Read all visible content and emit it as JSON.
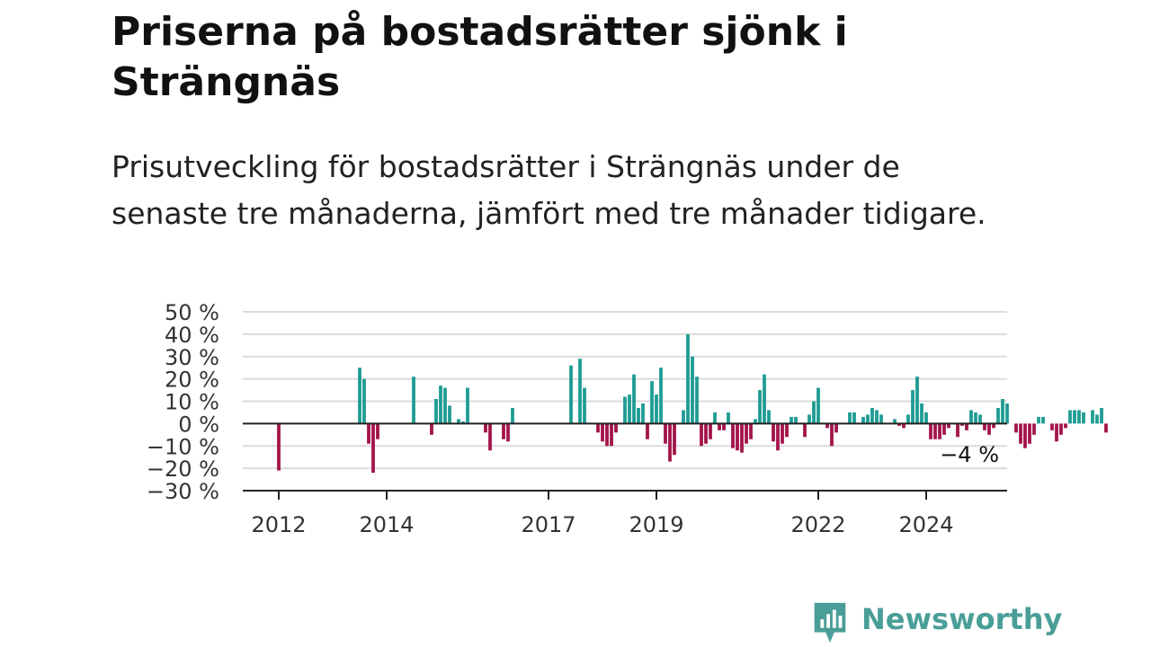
{
  "title": "Priserna på bostadsrätter sjönk i Strängnäs",
  "subtitle": "Prisutveckling för bostadsrätter i Strängnäs under de senaste tre månaderna, jämfört med tre månader tidigare.",
  "brand": {
    "name": "Newsworthy",
    "color": "#4a9e98"
  },
  "chart_data": {
    "type": "bar",
    "title": "",
    "xlabel": "",
    "ylabel": "",
    "ylim": [
      -30,
      50
    ],
    "y_ticks": [
      50,
      40,
      30,
      20,
      10,
      0,
      -10,
      -20,
      -30
    ],
    "y_tick_labels": [
      "50 %",
      "40 %",
      "30 %",
      "20 %",
      "10 %",
      "0 %",
      "−10 %",
      "−20 %",
      "−30 %"
    ],
    "x_tick_labels": [
      "2012",
      "2014",
      "2017",
      "2019",
      "2022",
      "2024"
    ],
    "x_tick_dates": [
      "2012-01",
      "2014-01",
      "2017-01",
      "2019-01",
      "2022-01",
      "2024-01"
    ],
    "grid": true,
    "legend": "none",
    "colors": {
      "positive": "#1f9c94",
      "negative": "#a3154b",
      "grid": "#dcdcdc",
      "axis": "#222222"
    },
    "annotation": {
      "text": "−4 %",
      "date": "2025-08"
    },
    "series": [
      {
        "start": "2012-01",
        "values": [
          -21,
          null,
          null,
          null,
          null,
          null,
          null,
          null,
          null,
          null,
          null,
          null,
          null,
          null,
          null,
          null,
          null,
          null,
          25,
          20,
          -9,
          -22,
          -7,
          null,
          null,
          null,
          null,
          null,
          null,
          null,
          21,
          null,
          null,
          null,
          -5,
          11,
          17,
          16,
          8,
          null,
          2,
          1,
          16,
          null,
          null,
          null,
          -4,
          -12,
          null,
          null,
          -7,
          -8,
          7,
          null,
          null,
          null,
          null,
          null,
          null,
          null,
          null,
          null,
          null,
          null,
          null,
          26,
          null,
          29,
          16,
          null,
          null,
          -4,
          -8,
          -10,
          -10,
          -4,
          null,
          12,
          13,
          22,
          7,
          9,
          -7,
          19,
          13,
          25,
          -9,
          -17,
          -14,
          null,
          6,
          40,
          30,
          21,
          -10,
          -9,
          -7,
          5,
          -3,
          -3,
          5,
          -11,
          -12,
          -13,
          -9,
          -7,
          2,
          15,
          22,
          6,
          -8,
          -12,
          -9,
          -6,
          3,
          3,
          null,
          -6,
          4,
          10,
          16,
          null,
          -2,
          -10,
          -4,
          null,
          null,
          5,
          5,
          null,
          3,
          4,
          7,
          6,
          4,
          null,
          null,
          2,
          -1,
          -2,
          4,
          15,
          21,
          9,
          5,
          -7,
          -7,
          -7,
          -5,
          -2,
          null,
          -6,
          -1,
          -3,
          6,
          5,
          4,
          -3,
          -5,
          -2,
          7,
          11,
          9,
          null,
          -4,
          -9,
          -11,
          -9,
          -5,
          3,
          3,
          null,
          -3,
          -8,
          -5,
          -2,
          6,
          6,
          6,
          5,
          null,
          6,
          4,
          7,
          -4
        ]
      }
    ]
  }
}
